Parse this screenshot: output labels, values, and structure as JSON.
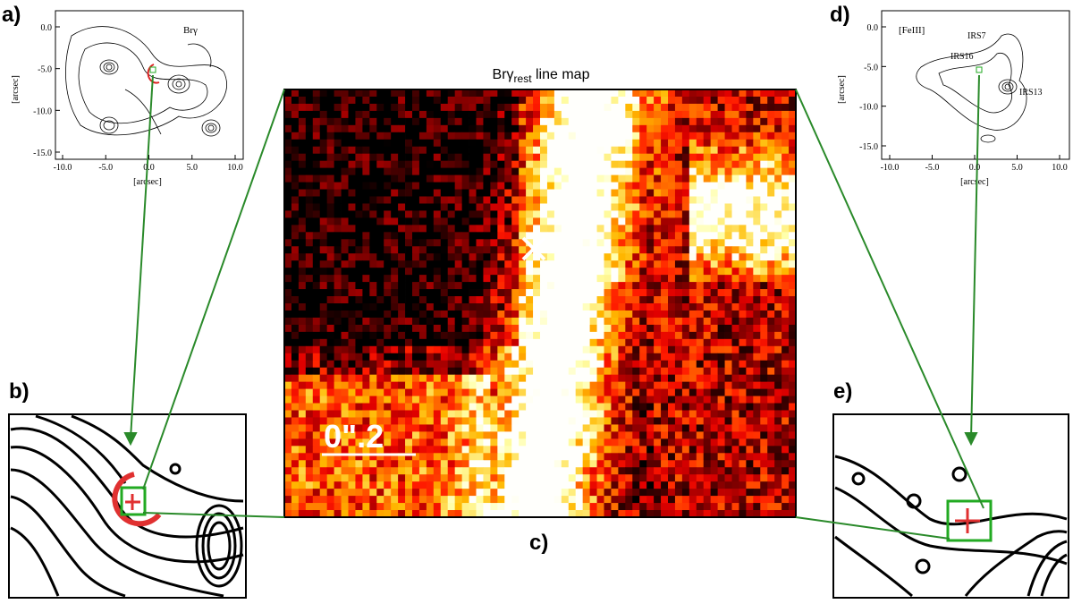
{
  "panels": {
    "a": {
      "label": "a)",
      "line_label": "Brγ",
      "xticks": [
        {
          "value": -10,
          "label": "-10.0"
        },
        {
          "value": -5,
          "label": "-5.0"
        },
        {
          "value": 0,
          "label": "0.0"
        },
        {
          "value": 5,
          "label": "5.0"
        },
        {
          "value": 10,
          "label": "10.0"
        }
      ],
      "yticks": [
        {
          "value": 0,
          "label": "0.0"
        },
        {
          "value": -5,
          "label": "-5.0"
        },
        {
          "value": -10,
          "label": "-10.0"
        },
        {
          "value": -15,
          "label": "-15.0"
        }
      ],
      "xlabel": "[arcsec]",
      "ylabel": "[arcsec]"
    },
    "b": {
      "label": "b)"
    },
    "c": {
      "label": "c)",
      "title": "Brγ",
      "title_sub": "rest",
      "title_rest": " line map",
      "scale_label": "0\".2"
    },
    "d": {
      "label": "d)",
      "line_label": "[FeIII]",
      "sources": [
        "IRS7",
        "IRS16",
        "IRS13"
      ],
      "xticks": [
        {
          "value": -10,
          "label": "-10.0"
        },
        {
          "value": -5,
          "label": "-5.0"
        },
        {
          "value": 0,
          "label": "0.0"
        },
        {
          "value": 5,
          "label": "5.0"
        },
        {
          "value": 10,
          "label": "10.0"
        }
      ],
      "yticks": [
        {
          "value": 0,
          "label": "0.0"
        },
        {
          "value": -5,
          "label": "-5.0"
        },
        {
          "value": -10,
          "label": "-10.0"
        },
        {
          "value": -15,
          "label": "-15.0"
        }
      ],
      "xlabel": "[arcsec]",
      "ylabel": "[arcsec]"
    },
    "e": {
      "label": "e)"
    }
  }
}
